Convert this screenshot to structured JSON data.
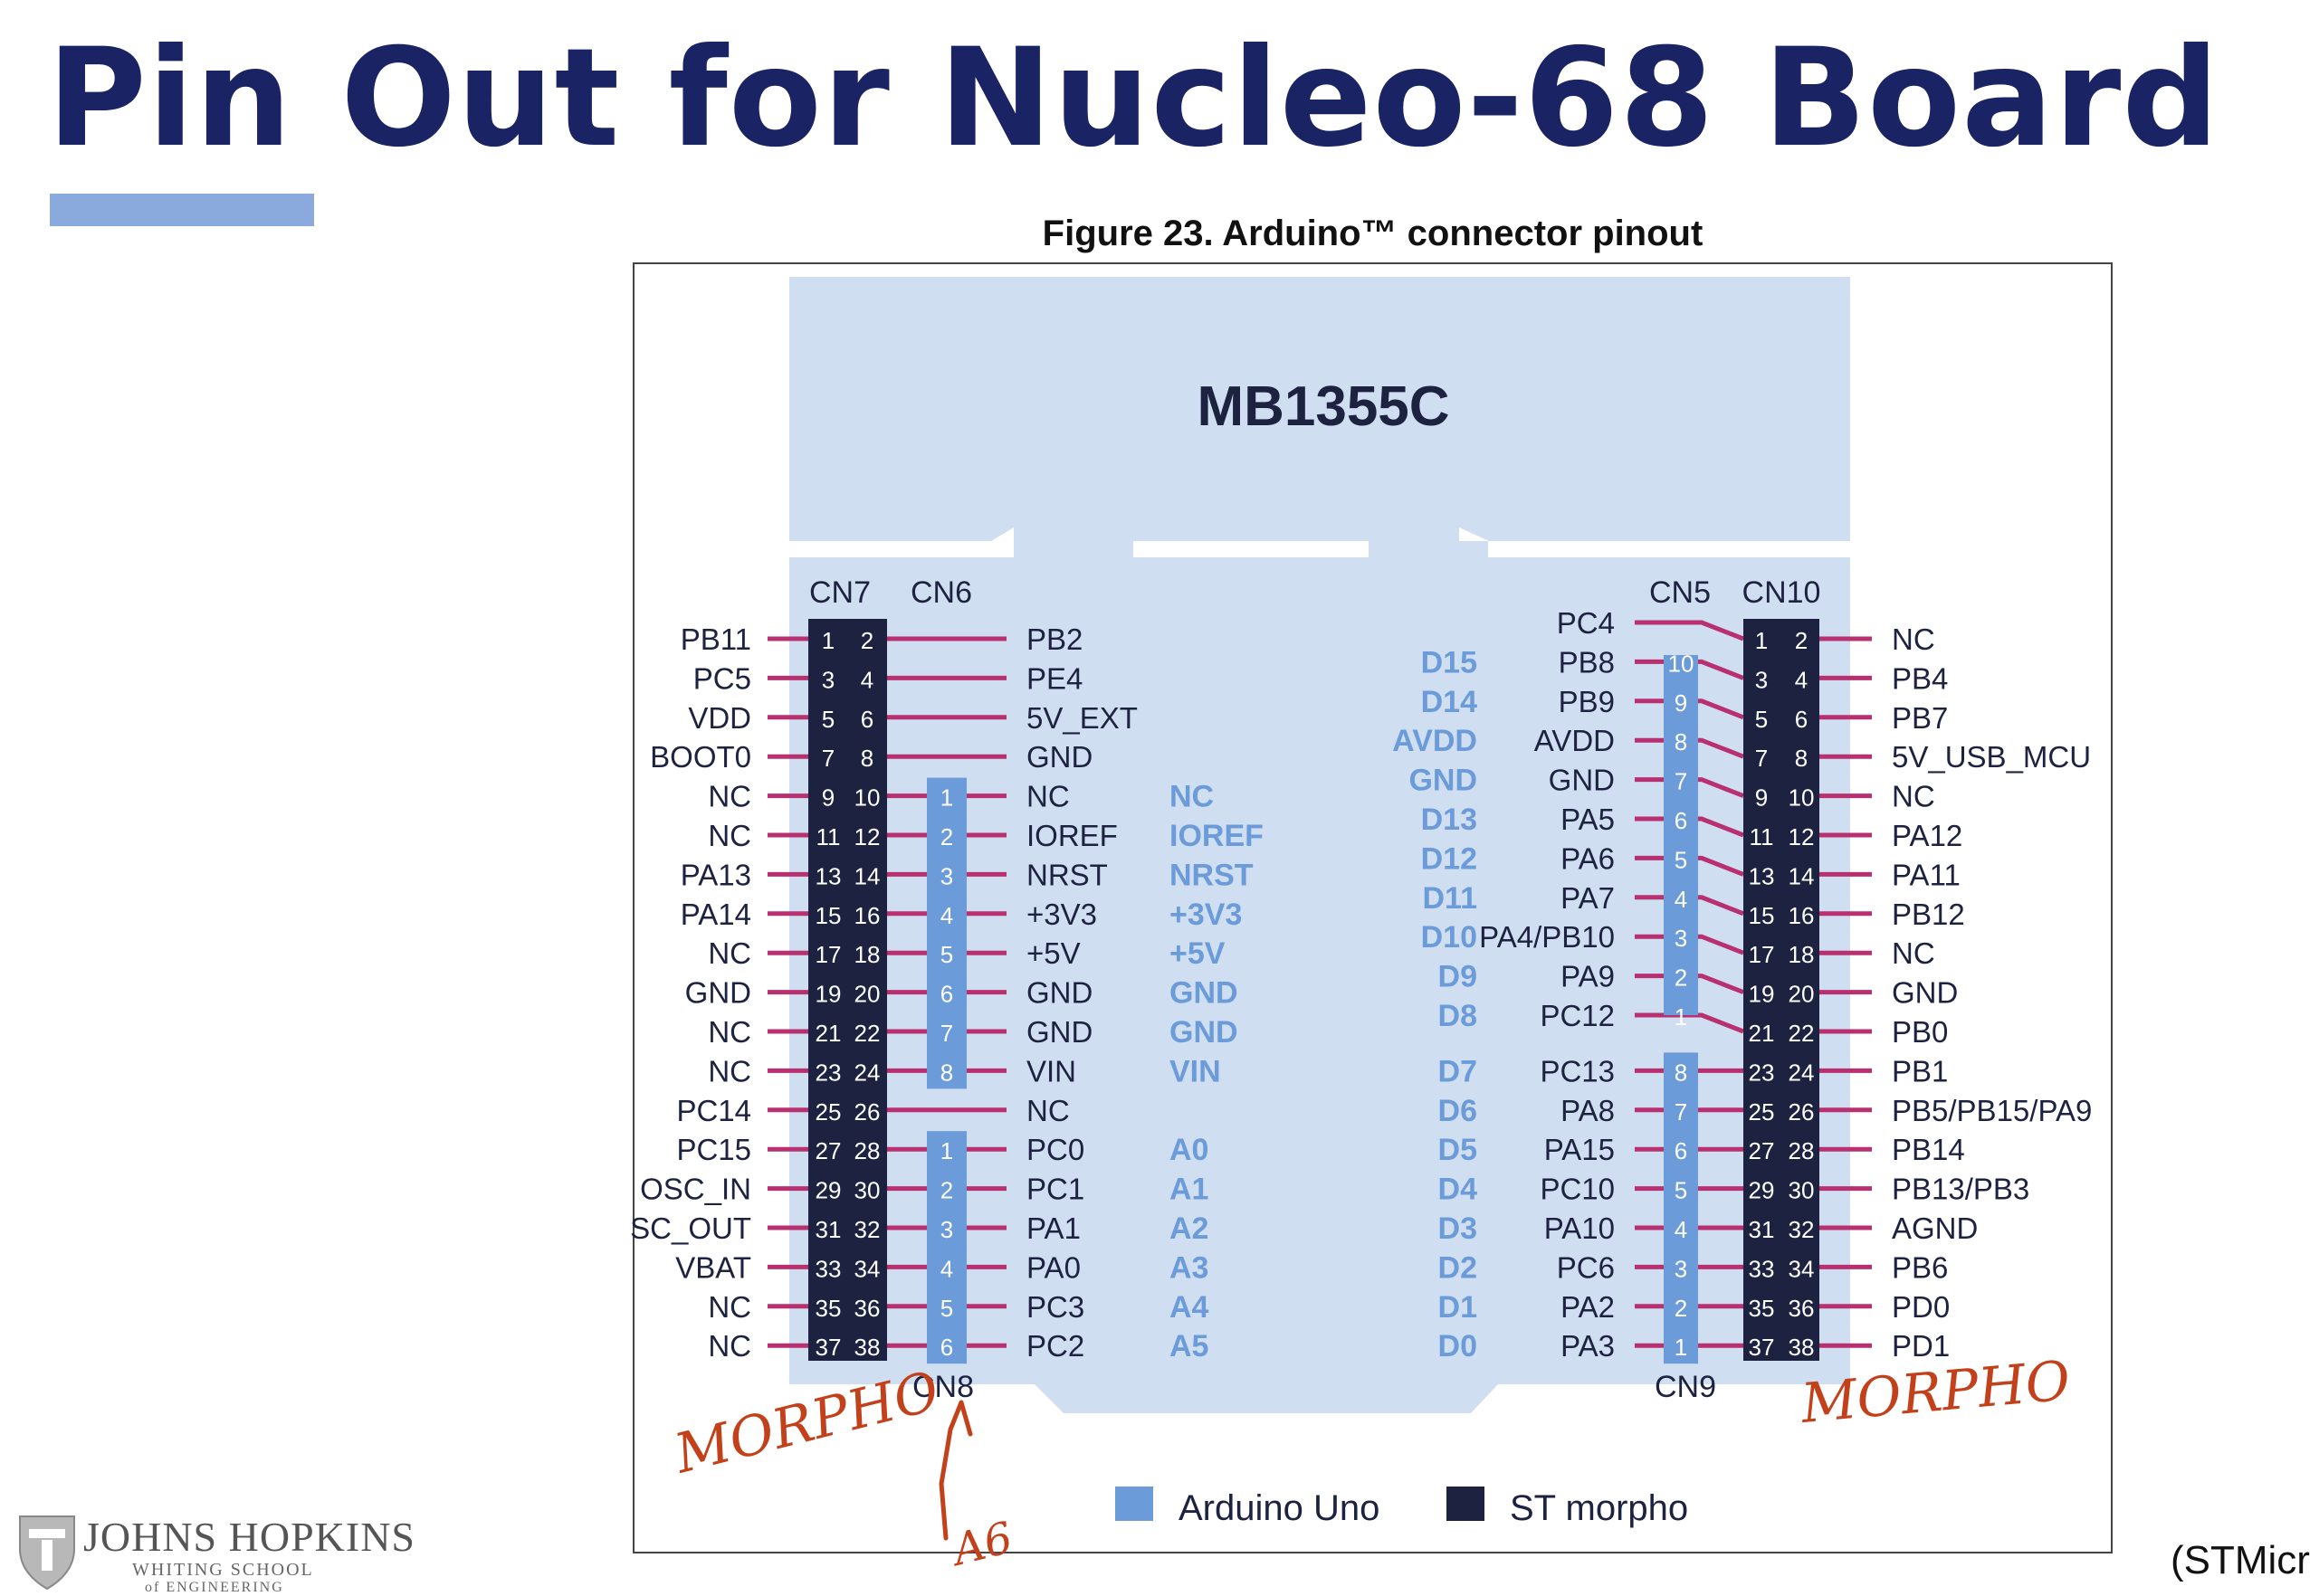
{
  "title": "Pin Out for Nucleo-68 Board",
  "figure_caption": "Figure 23. Arduino™ connector pinout",
  "board_label": "MB1355C",
  "source_credit": "(STMicr",
  "logo": {
    "name": "JOHNS HOPKINS",
    "school": "WHITING SCHOOL",
    "school2": "of ENGINEERING"
  },
  "colors": {
    "title": "#1a2363",
    "board": "#cfdef0",
    "arduino": "#6b9bd8",
    "morpho": "#1d2240",
    "pin_line": "#b83070",
    "arduino_text": "#6b9bd8",
    "handwriting": "#c2401a"
  },
  "headers": {
    "cn7": "CN7",
    "cn6": "CN6",
    "cn8": "CN8",
    "cn5": "CN5",
    "cn10": "CN10",
    "cn9": "CN9"
  },
  "cn7_left_labels": [
    "PB11",
    "PC5",
    "VDD",
    "BOOT0",
    "NC",
    "NC",
    "PA13",
    "PA14",
    "NC",
    "GND",
    "NC",
    "NC",
    "PC14",
    "PC15",
    "OSC_IN",
    "SC_OUT",
    "VBAT",
    "NC",
    "NC"
  ],
  "cn7_right_labels": [
    "PB2",
    "PE4",
    "5V_EXT",
    "GND",
    "NC",
    "IOREF",
    "NRST",
    "+3V3",
    "+5V",
    "GND",
    "GND",
    "VIN",
    "NC",
    "PC0",
    "PC1",
    "PA1",
    "PA0",
    "PC3",
    "PC2"
  ],
  "cn6_pin_numbers": [
    "1",
    "2",
    "3",
    "4",
    "5",
    "6",
    "7",
    "8"
  ],
  "cn6_arduino_labels": [
    "NC",
    "IOREF",
    "NRST",
    "+3V3",
    "+5V",
    "GND",
    "GND",
    "VIN"
  ],
  "cn8_pin_numbers": [
    "1",
    "2",
    "3",
    "4",
    "5",
    "6"
  ],
  "cn8_arduino_labels": [
    "A0",
    "A1",
    "A2",
    "A3",
    "A4",
    "A5"
  ],
  "cn10_left_labels": [
    "PC4",
    "PB8",
    "PB9",
    "AVDD",
    "GND",
    "PA5",
    "PA6",
    "PA7",
    "PA4/PB10",
    "PA9",
    "PC12",
    "PC13",
    "PA8",
    "PA15",
    "PC10",
    "PA10",
    "PC6",
    "PA2",
    "PA3"
  ],
  "cn10_right_labels": [
    "NC",
    "PB4",
    "PB7",
    "5V_USB_MCU",
    "NC",
    "PA12",
    "PA11",
    "PB12",
    "NC",
    "GND",
    "PB0",
    "PB1",
    "PB5/PB15/PA9",
    "PB14",
    "PB13/PB3",
    "AGND",
    "PB6",
    "PD0",
    "PD1"
  ],
  "cn5_pin_numbers": [
    "10",
    "9",
    "8",
    "7",
    "6",
    "5",
    "4",
    "3",
    "2",
    "1"
  ],
  "cn5_arduino_labels": [
    "D15",
    "D14",
    "AVDD",
    "GND",
    "D13",
    "D12",
    "D11",
    "D10",
    "D9",
    "D8"
  ],
  "cn9_pin_numbers": [
    "8",
    "7",
    "6",
    "5",
    "4",
    "3",
    "2",
    "1"
  ],
  "cn9_arduino_labels": [
    "D7",
    "D6",
    "D5",
    "D4",
    "D3",
    "D2",
    "D1",
    "D0"
  ],
  "legend": {
    "arduino": "Arduino Uno",
    "morpho": "ST morpho"
  },
  "handwriting": {
    "left_note": "MORPHO",
    "right_note": "MORPHO",
    "arrow_note": "A6"
  }
}
